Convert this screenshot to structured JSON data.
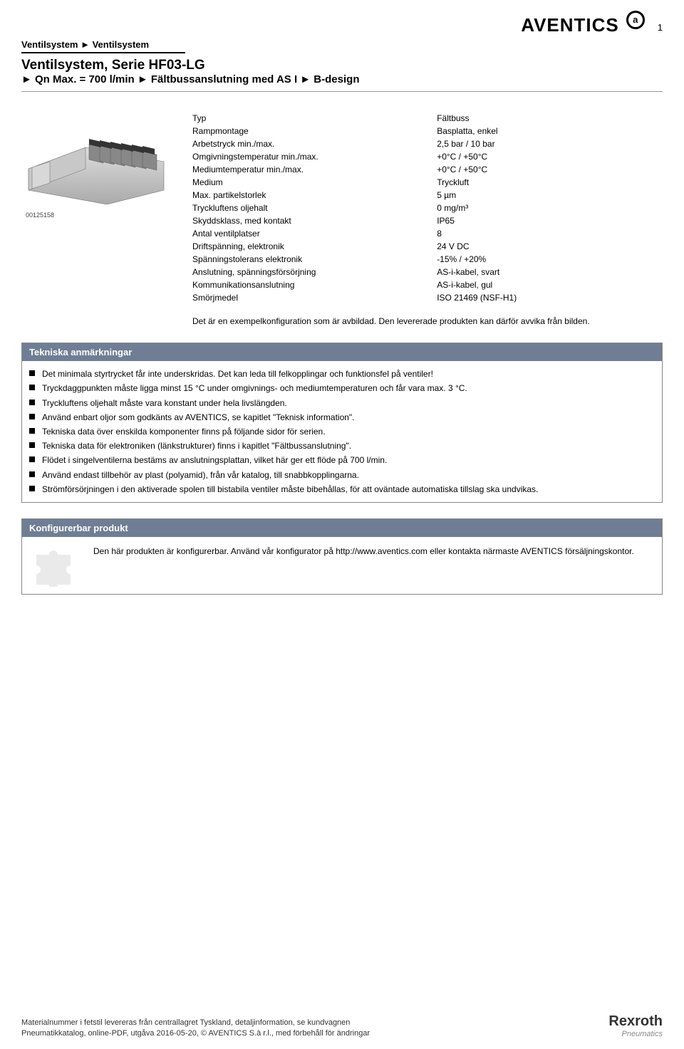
{
  "header": {
    "page_number": "1",
    "breadcrumb": "Ventilsystem ► Ventilsystem",
    "title": "Ventilsystem, Serie HF03-LG",
    "subtitle": "► Qn Max. = 700 l/min ► Fältbussanslutning med AS I ► B-design",
    "logo_text": "AVENTICS",
    "logo_glyph": "a"
  },
  "image": {
    "id": "00125158"
  },
  "specs": [
    {
      "k": "Typ",
      "v": "Fältbuss"
    },
    {
      "k": "Rampmontage",
      "v": "Basplatta, enkel"
    },
    {
      "k": "Arbetstryck min./max.",
      "v": "2,5 bar / 10 bar"
    },
    {
      "k": "Omgivningstemperatur min./max.",
      "v": "+0°C / +50°C"
    },
    {
      "k": "Mediumtemperatur min./max.",
      "v": "+0°C / +50°C"
    },
    {
      "k": "Medium",
      "v": "Tryckluft"
    },
    {
      "k": "Max. partikelstorlek",
      "v": "5 µm"
    },
    {
      "k": "Tryckluftens oljehalt",
      "v": "0 mg/m³"
    },
    {
      "k": "Skyddsklass, med kontakt",
      "v": "IP65"
    },
    {
      "k": "Antal ventilplatser",
      "v": "8"
    },
    {
      "k": "Driftspänning, elektronik",
      "v": "24 V DC"
    },
    {
      "k": "Spänningstolerans elektronik",
      "v": "-15% / +20%"
    },
    {
      "k": "Anslutning, spänningsförsörjning",
      "v": "AS-i-kabel, svart"
    },
    {
      "k": "Kommunikationsanslutning",
      "v": "AS-i-kabel, gul"
    },
    {
      "k": "Smörjmedel",
      "v": "ISO 21469 (NSF-H1)"
    }
  ],
  "note": "Det är en exempelkonfiguration som är avbildad. Den levererade produkten kan därför avvika från bilden.",
  "tech_section": {
    "title": "Tekniska anmärkningar",
    "items": [
      "Det minimala styrtrycket får inte underskridas. Det kan leda till felkopplingar och funktionsfel på ventiler!",
      "Tryckdaggpunkten måste ligga minst 15 °C under omgivnings- och mediumtemperaturen och får vara max. 3 °C.",
      "Tryckluftens oljehalt måste vara konstant under hela livslängden.",
      "Använd enbart oljor som godkänts av AVENTICS, se kapitlet \"Teknisk information\".",
      "Tekniska data över enskilda komponenter finns på följande sidor för serien.",
      "Tekniska data för elektroniken (länkstrukturer) finns i kapitlet \"Fältbussanslutning\".",
      "Flödet i singelventilerna bestäms av anslutningsplattan, vilket här ger ett flöde på 700 l/min.",
      "Använd endast tillbehör av plast (polyamid), från vår katalog, till snabbkopplingarna.",
      "Strömförsörjningen i den aktiverade spolen till bistabila ventiler måste bibehållas, för att oväntade automatiska tillslag ska undvikas."
    ]
  },
  "config_section": {
    "title": "Konfigurerbar produkt",
    "text": "Den här produkten är konfigurerbar. Använd vår konfigurator på http://www.aventics.com eller kontakta närmaste AVENTICS  försäljningskontor."
  },
  "footer": {
    "line1": "Materialnummer i fetstil levereras från centrallagret Tyskland, detaljinformation, se kundvagnen",
    "line2": "Pneumatikkatalog, online-PDF, utgåva 2016-05-20, © AVENTICS S.à r.l., med förbehåll för ändringar",
    "rexroth": "Rexroth",
    "rexroth_sub": "Pneumatics"
  },
  "colors": {
    "section_head_bg": "#6f7e94",
    "section_border": "#888888"
  }
}
